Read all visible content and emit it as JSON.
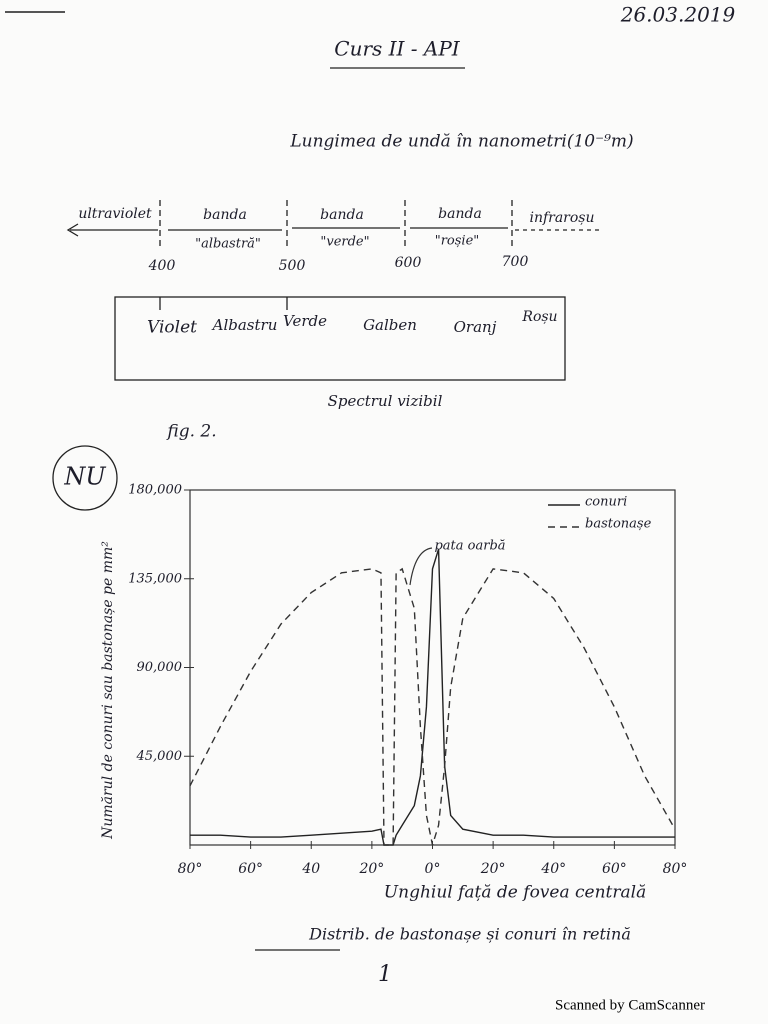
{
  "header": {
    "date": "26.03.2019",
    "title": "Curs II - API"
  },
  "wavelength": {
    "heading": "Lungimea de undă în nanometri(10⁻⁹m)",
    "left": "ultraviolet",
    "right": "infraroșu",
    "bands": [
      {
        "name": "banda",
        "color": "\"albastră\""
      },
      {
        "name": "banda",
        "color": "\"verde\""
      },
      {
        "name": "banda",
        "color": "\"roșie\""
      }
    ],
    "marks": [
      400,
      500,
      600,
      700
    ]
  },
  "spectrum": {
    "colors": [
      "Violet",
      "Albastru",
      "Verde",
      "Galben",
      "Oranj",
      "Roșu"
    ],
    "caption": "Spectrul vizibil"
  },
  "figure_label": "fig. 2.",
  "stamp": "NU",
  "chart_data": {
    "type": "line",
    "y_label": "Numărul de conuri sau bastonașe pe mm²",
    "x_label": "Unghiul față de fovea centrală",
    "annotation": "pata oarbă",
    "x": [
      -80,
      -70,
      -60,
      -50,
      -40,
      -30,
      -20,
      -17,
      -16,
      -13,
      -12,
      -10,
      -6,
      -4,
      -2,
      0,
      2,
      4,
      6,
      10,
      20,
      30,
      40,
      50,
      60,
      70,
      80
    ],
    "series": [
      {
        "name": "conuri",
        "color": "#222222",
        "dash": false,
        "values": [
          5000,
          5000,
          4000,
          4000,
          5000,
          6000,
          7000,
          8000,
          0,
          0,
          5000,
          10000,
          20000,
          35000,
          70000,
          140000,
          150000,
          40000,
          15000,
          8000,
          5000,
          5000,
          4000,
          4000,
          4000,
          4000,
          4000
        ]
      },
      {
        "name": "bastonașe",
        "color": "#333333",
        "dash": true,
        "values": [
          30000,
          60000,
          88000,
          112000,
          128000,
          138000,
          140000,
          138000,
          0,
          0,
          138000,
          140000,
          120000,
          60000,
          15000,
          0,
          10000,
          40000,
          80000,
          115000,
          140000,
          138000,
          125000,
          100000,
          70000,
          35000,
          8000
        ]
      }
    ],
    "xlim": [
      -80,
      80
    ],
    "xticks": [
      {
        "value": -80,
        "label": "80°"
      },
      {
        "value": -60,
        "label": "60°"
      },
      {
        "value": -40,
        "label": "40"
      },
      {
        "value": -20,
        "label": "20°"
      },
      {
        "value": 0,
        "label": "0°"
      },
      {
        "value": 20,
        "label": "20°"
      },
      {
        "value": 40,
        "label": "40°"
      },
      {
        "value": 60,
        "label": "60°"
      },
      {
        "value": 80,
        "label": "80°"
      }
    ],
    "ylim": [
      0,
      180000
    ],
    "yticks": [
      {
        "value": 45000,
        "label": "45,000"
      },
      {
        "value": 90000,
        "label": "90,000"
      },
      {
        "value": 135000,
        "label": "135,000"
      },
      {
        "value": 180000,
        "label": "180,000"
      }
    ],
    "legend": "top-right"
  },
  "caption": "Distrib. de bastonașe și conuri în retină",
  "page_number": "1",
  "footer": "Scanned by CamScanner"
}
